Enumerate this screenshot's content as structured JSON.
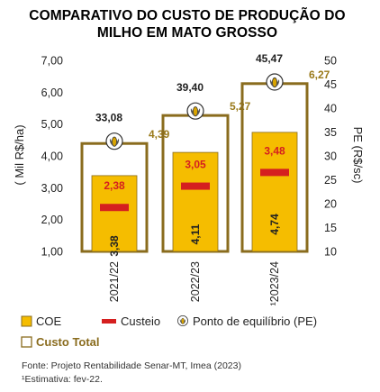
{
  "chart_data": {
    "type": "bar",
    "title_lines": [
      "COMPARATIVO DO CUSTO DE PRODUÇÃO DO",
      "MILHO EM MATO GROSSO"
    ],
    "ylabel": "( Mil R$/ha)",
    "y2label": "PE (R$/sc)",
    "ylim": [
      1.0,
      7.0
    ],
    "y2lim": [
      10,
      50
    ],
    "yticks": [
      "7,00",
      "6,00",
      "5,00",
      "4,00",
      "3,00",
      "2,00",
      "1,00"
    ],
    "y2ticks": [
      "50",
      "45",
      "40",
      "35",
      "30",
      "25",
      "20",
      "15",
      "10"
    ],
    "categories": [
      "2021/22",
      "2022/23",
      "¹2023/24"
    ],
    "series": [
      {
        "name": "COE",
        "values": [
          3.38,
          4.11,
          4.74
        ],
        "labels": [
          "3,38",
          "4,11",
          "4,74"
        ]
      },
      {
        "name": "Custeio",
        "values": [
          2.38,
          3.05,
          3.48
        ],
        "labels": [
          "2,38",
          "3,05",
          "3,48"
        ]
      },
      {
        "name": "Ponto de equilíbrio (PE)",
        "values": [
          33.08,
          39.4,
          45.47
        ],
        "labels": [
          "33,08",
          "39,40",
          "45,47"
        ]
      },
      {
        "name": "Custo Total",
        "values": [
          4.39,
          5.27,
          6.27
        ],
        "labels": [
          "4,39",
          "5,27",
          "6,27"
        ]
      }
    ],
    "colors": {
      "coe": "#f5bd00",
      "custeio": "#d51f1f",
      "total": "#8a6c1e",
      "pe_label": "#9a7a1a"
    },
    "legend": [
      "COE",
      "Custeio",
      "Ponto de equilíbrio (PE)",
      "Custo Total"
    ],
    "legend_position": "bottom",
    "grid": false
  },
  "footer": {
    "source": "Fonte: Projeto Rentabilidade Senar-MT, Imea (2023)",
    "note": "¹Estimativa: fev-22."
  }
}
